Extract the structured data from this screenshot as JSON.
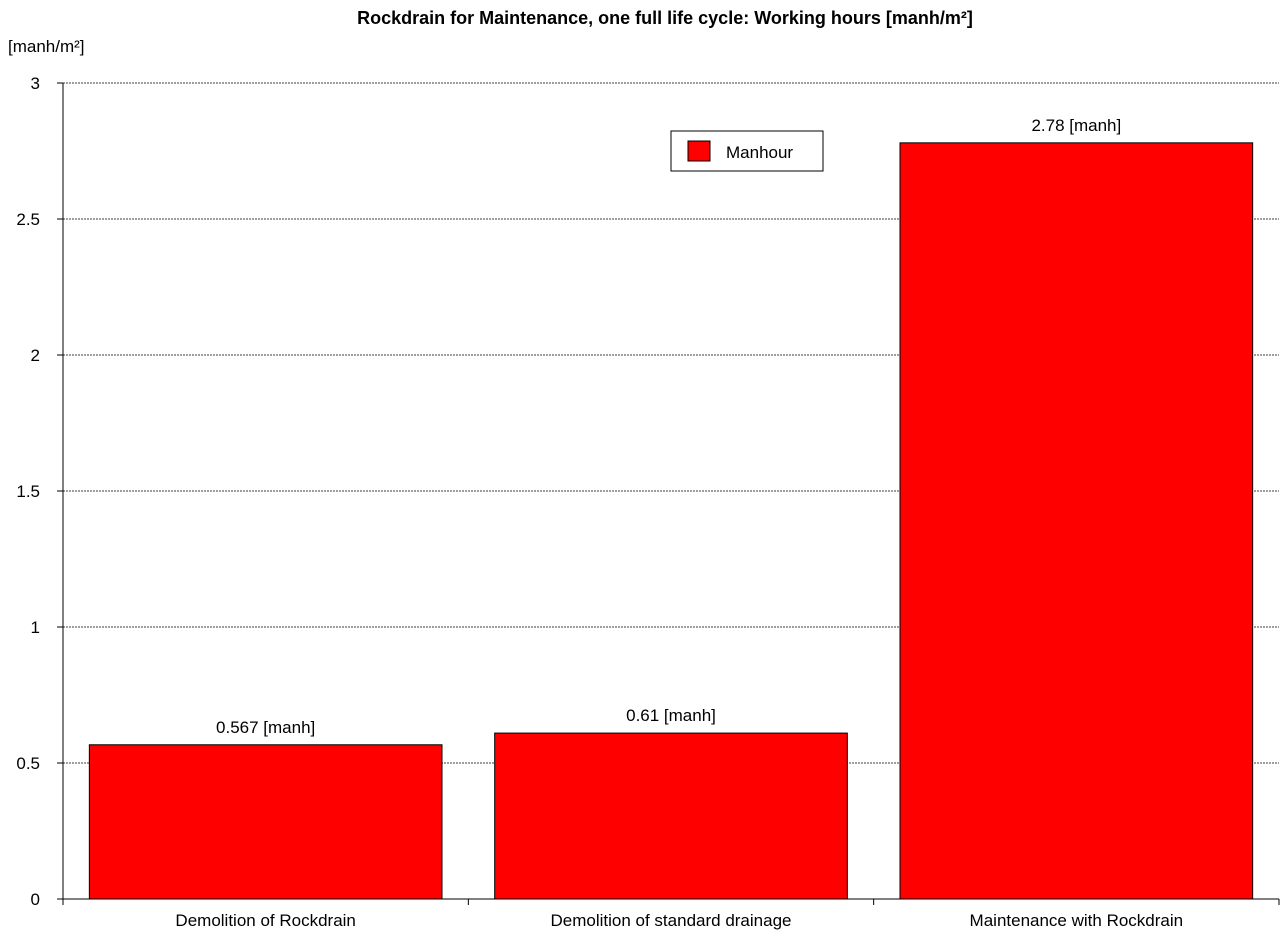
{
  "chart_data": {
    "type": "bar",
    "title": "Rockdrain for Maintenance, one full life cycle: Working hours [manh/m²]",
    "ylabel": "[manh/m²]",
    "xlabel": "",
    "categories": [
      "Demolition of Rockdrain",
      "Demolition of standard drainage",
      "Maintenance with Rockdrain"
    ],
    "series": [
      {
        "name": "Manhour",
        "values": [
          0.567,
          0.61,
          2.78
        ],
        "color": "#ff0000"
      }
    ],
    "data_labels": [
      "0.567 [manh]",
      "0.61 [manh]",
      "2.78 [manh]"
    ],
    "ylim": [
      0,
      3
    ],
    "yticks": [
      0,
      0.5,
      1,
      1.5,
      2,
      2.5,
      3
    ],
    "ytick_labels": [
      "0",
      "0.5",
      "1",
      "1.5",
      "2",
      "2.5",
      "3"
    ],
    "grid": true,
    "legend_position": "top-center"
  }
}
